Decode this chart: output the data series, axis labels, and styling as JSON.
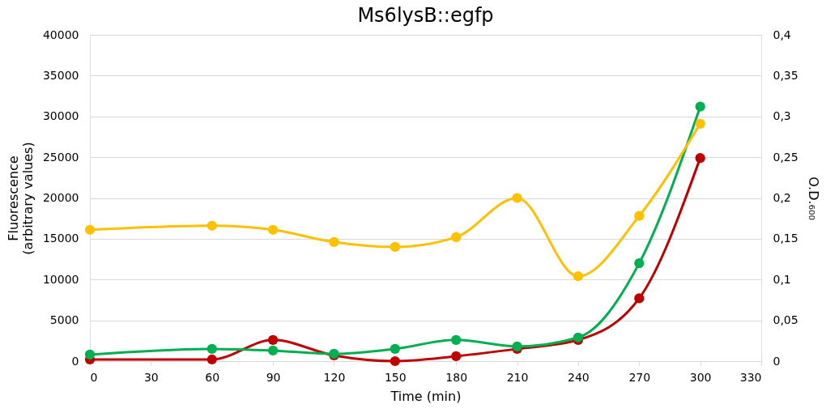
{
  "chart_data": {
    "type": "line",
    "title": "Ms6lysB::egfp",
    "xlabel": "Time (min)",
    "ylabel": "Fluorescence (arbitrary values)",
    "y2label": "O.D.₆₀₀",
    "x": [
      0,
      60,
      90,
      120,
      150,
      180,
      210,
      240,
      270,
      300
    ],
    "series": [
      {
        "color": "#ffc000",
        "axis": "y2",
        "values": [
          0.161,
          0.166,
          0.161,
          0.146,
          0.14,
          0.152,
          0.2,
          0.104,
          0.178,
          0.291
        ]
      },
      {
        "color": "#c00000",
        "values": [
          200,
          200,
          2600,
          700,
          0,
          600,
          1500,
          2600,
          7700,
          24900
        ]
      },
      {
        "color": "#00b050",
        "values": [
          800,
          1500,
          1300,
          900,
          1500,
          2600,
          1800,
          2900,
          12000,
          31200
        ]
      }
    ],
    "xlim": [
      0,
      330
    ],
    "xticks": [
      0,
      30,
      60,
      90,
      120,
      150,
      180,
      210,
      240,
      270,
      300,
      330
    ],
    "ylim": [
      0,
      40000
    ],
    "yticks": [
      0,
      5000,
      10000,
      15000,
      20000,
      25000,
      30000,
      35000,
      40000
    ],
    "y2lim": [
      0,
      0.4
    ],
    "y2ticks": [
      0,
      {
        "value": 0.05,
        "label": "0,05"
      },
      {
        "value": 0.1,
        "label": "0,1"
      },
      {
        "value": 0.15,
        "label": "0,15"
      },
      {
        "value": 0.2,
        "label": "0,2"
      },
      {
        "value": 0.25,
        "label": "0,25"
      },
      {
        "value": 0.3,
        "label": "0,3"
      },
      {
        "value": 0.35,
        "label": "0,35"
      },
      {
        "value": 0.4,
        "label": "0,4"
      }
    ],
    "grid": "y",
    "marker": "circle",
    "line_style": "solid"
  }
}
